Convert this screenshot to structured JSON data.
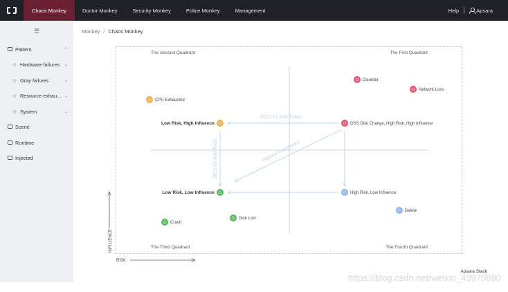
{
  "topbar": {
    "nav": [
      {
        "label": "Chaos Monkey",
        "active": true
      },
      {
        "label": "Doctor Monkey",
        "active": false
      },
      {
        "label": "Security Monkey",
        "active": false
      },
      {
        "label": "Police Monkey",
        "active": false
      },
      {
        "label": "Management",
        "active": false
      }
    ],
    "help_label": "Help",
    "user_label": "Apsara"
  },
  "sidebar": {
    "collapse_icon": "menu-collapse-icon",
    "items": [
      {
        "label": "Pattern",
        "icon": "box-icon",
        "chevron": "up",
        "sub": false
      },
      {
        "label": "Hardware failures",
        "icon": "star-icon",
        "chevron": "down",
        "sub": true
      },
      {
        "label": "Gray failures",
        "icon": "star-icon",
        "chevron": "down",
        "sub": true
      },
      {
        "label": "Resource exhaus...",
        "icon": "star-icon",
        "chevron": "down",
        "sub": true
      },
      {
        "label": "System",
        "icon": "star-icon",
        "chevron": "down",
        "sub": true
      },
      {
        "label": "Scene",
        "icon": "box-icon",
        "chevron": "",
        "sub": false
      },
      {
        "label": "Runtime",
        "icon": "box-icon",
        "chevron": "",
        "sub": false
      },
      {
        "label": "Injected",
        "icon": "box-icon",
        "chevron": "",
        "sub": false
      }
    ]
  },
  "breadcrumb": {
    "root": "Monkey",
    "separator": "/",
    "current": "Chaos Monkey"
  },
  "quadrants": {
    "top_left": "The Second Quadrant",
    "top_right": "The First Quadrant",
    "bottom_left": "The Third Quadrant",
    "bottom_right": "The Fourth Quadrant"
  },
  "axes": {
    "x_label": "RISK",
    "y_label": "INFLUENCE"
  },
  "colors": {
    "red": "#e0566f",
    "orange": "#f0ad4e",
    "blue": "#8fb3e6",
    "green": "#5cb85c",
    "arrow": "#b9d3ef"
  },
  "arrows": {
    "add_action": "2017-12 Add Action",
    "add_tools": "2018-01 Add Tools",
    "highest_investment": "Highest Investment"
  },
  "footer": {
    "brand": "Apsara Stack",
    "watermark": "https://blog.csdn.net/weixin_43970890"
  }
}
